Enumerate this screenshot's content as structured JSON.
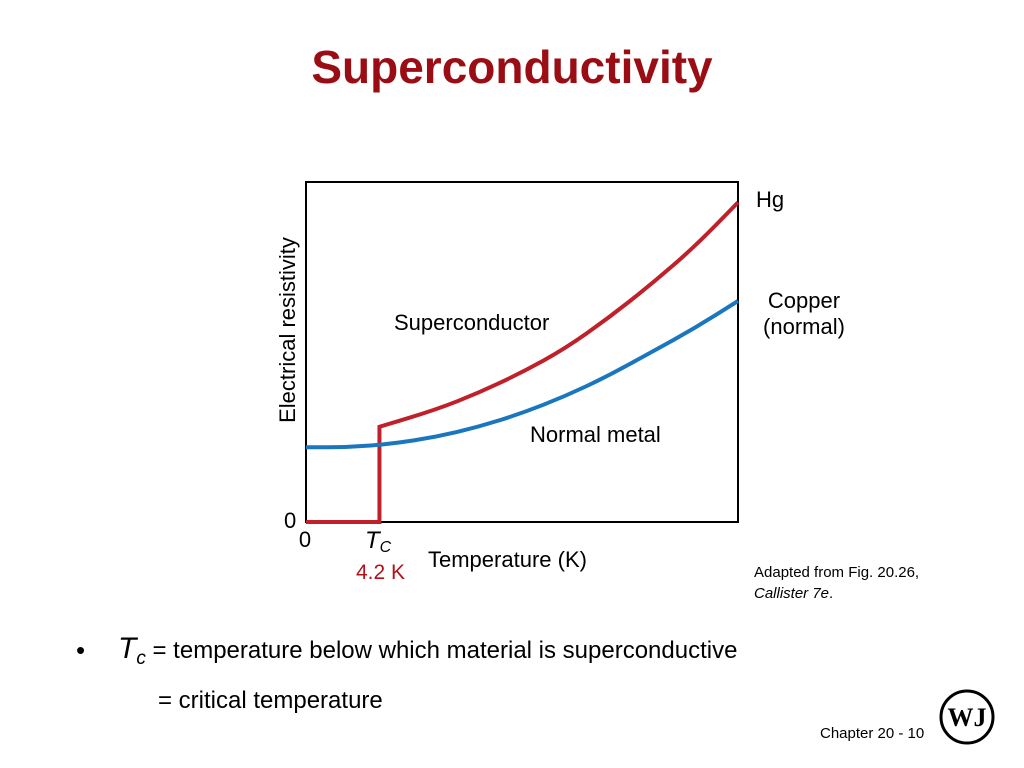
{
  "slide": {
    "title": "Superconductivity",
    "footer": "Chapter 20 - 10"
  },
  "figure": {
    "superconductor_label": "Superconductor",
    "normal_label": "Normal metal",
    "hg_label": "Hg",
    "copper_label_line1": "Copper",
    "copper_label_line2": "(normal)",
    "tc_value": "4.2 K",
    "credit_line1": "Adapted from Fig. 20.26,",
    "credit_line2": "Callister 7e",
    "credit_line2_suffix": "."
  },
  "chart_data": {
    "type": "line",
    "xlabel": "Temperature (K)",
    "ylabel": "Electrical resistivity",
    "x_origin_label": "0",
    "y_origin_label": "0",
    "tc_tick_main": "T",
    "tc_tick_sub": "C",
    "x": [
      0,
      0.1,
      0.2,
      0.3,
      0.4,
      0.5,
      0.6,
      0.7,
      0.8,
      0.9,
      1.0
    ],
    "series": [
      {
        "name": "Superconductor",
        "color": "#c0202a",
        "x": [
          0,
          0.17,
          0.17,
          0.17,
          0.3,
          0.4,
          0.5,
          0.6,
          0.7,
          0.8,
          0.9,
          1.0
        ],
        "values": [
          0,
          0,
          0,
          0.28,
          0.33,
          0.38,
          0.44,
          0.51,
          0.6,
          0.7,
          0.81,
          0.94
        ]
      },
      {
        "name": "Normal metal",
        "color": "#1a77bf",
        "x": [
          0,
          0.1,
          0.2,
          0.3,
          0.4,
          0.5,
          0.6,
          0.7,
          0.8,
          0.9,
          1.0
        ],
        "values": [
          0.22,
          0.22,
          0.23,
          0.25,
          0.28,
          0.32,
          0.37,
          0.43,
          0.5,
          0.57,
          0.65
        ]
      }
    ],
    "xlim": [
      0,
      1
    ],
    "ylim": [
      0,
      1
    ],
    "tc_x": 0.17,
    "grid": false
  },
  "bullet": {
    "symbol": "•",
    "tc_main": "T",
    "tc_sub": "c",
    "line1_text": " = temperature below which material is superconductive",
    "line2_text": "= critical temperature"
  },
  "colors": {
    "title": "#9b0d14",
    "superconductor": "#c0202a",
    "normal": "#1a77bf",
    "tc_value": "#b3121b"
  },
  "logo": {
    "icon": "wiley-logo",
    "text": "WJ"
  }
}
